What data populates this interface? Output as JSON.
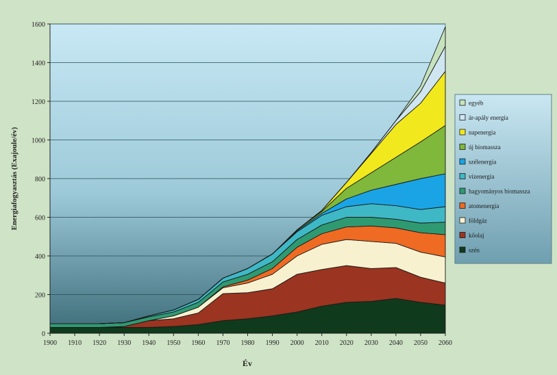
{
  "chart_data": {
    "type": "area",
    "stacked": true,
    "title": "",
    "xlabel": "Év",
    "ylabel": "Energiafogyasztás (Exajoule/év)",
    "x": [
      1900,
      1910,
      1920,
      1930,
      1940,
      1950,
      1960,
      1970,
      1980,
      1990,
      2000,
      2010,
      2020,
      2030,
      2040,
      2050,
      2060
    ],
    "xlim": [
      1900,
      2060
    ],
    "ylim": [
      0,
      1600
    ],
    "yticks": [
      0,
      200,
      400,
      600,
      800,
      1000,
      1200,
      1400,
      1600
    ],
    "xticks": [
      1900,
      1910,
      1920,
      1930,
      1940,
      1950,
      1960,
      1970,
      1980,
      1990,
      2000,
      2010,
      2020,
      2030,
      2040,
      2050,
      2060
    ],
    "grid": "horizontal",
    "legend_position": "right",
    "series": [
      {
        "name": "szén",
        "color": "#0f3a1c",
        "values": [
          30,
          30,
          30,
          30,
          30,
          35,
          45,
          65,
          75,
          90,
          110,
          140,
          160,
          165,
          180,
          160,
          145
        ]
      },
      {
        "name": "kőolaj",
        "color": "#9b3420",
        "values": [
          0,
          0,
          0,
          5,
          35,
          40,
          60,
          140,
          135,
          140,
          195,
          190,
          190,
          170,
          160,
          130,
          115
        ]
      },
      {
        "name": "földgáz",
        "color": "#f7f1cf",
        "values": [
          0,
          0,
          0,
          0,
          0,
          15,
          30,
          30,
          50,
          75,
          95,
          130,
          135,
          140,
          125,
          130,
          135
        ]
      },
      {
        "name": "atomenergia",
        "color": "#ef6a22",
        "values": [
          0,
          0,
          0,
          0,
          0,
          0,
          0,
          5,
          15,
          30,
          45,
          55,
          65,
          80,
          80,
          100,
          115
        ]
      },
      {
        "name": "hagyományos biomassza",
        "color": "#2f9a72",
        "values": [
          20,
          20,
          20,
          20,
          20,
          20,
          25,
          25,
          30,
          35,
          40,
          45,
          50,
          45,
          45,
          50,
          65
        ]
      },
      {
        "name": "vízenergia",
        "color": "#3fb8c6",
        "values": [
          0,
          0,
          0,
          0,
          5,
          10,
          15,
          20,
          30,
          40,
          40,
          50,
          55,
          70,
          70,
          70,
          80
        ]
      },
      {
        "name": "szélenergia",
        "color": "#1aa4e6",
        "values": [
          0,
          0,
          0,
          0,
          0,
          0,
          0,
          0,
          0,
          0,
          5,
          10,
          40,
          70,
          110,
          160,
          170
        ]
      },
      {
        "name": "új biomassza",
        "color": "#7fb83a",
        "values": [
          0,
          0,
          0,
          0,
          0,
          0,
          0,
          0,
          0,
          0,
          5,
          10,
          55,
          90,
          140,
          190,
          250
        ]
      },
      {
        "name": "napenergia",
        "color": "#f2e81e",
        "values": [
          0,
          0,
          0,
          0,
          0,
          0,
          0,
          0,
          0,
          0,
          0,
          5,
          30,
          100,
          170,
          200,
          280
        ]
      },
      {
        "name": "ár-apály energia",
        "color": "#cfe6f1",
        "values": [
          0,
          0,
          0,
          0,
          0,
          0,
          0,
          0,
          0,
          0,
          0,
          0,
          0,
          5,
          20,
          60,
          130
        ]
      },
      {
        "name": "egyéb",
        "color": "#c6e3bd",
        "values": [
          0,
          0,
          0,
          0,
          0,
          0,
          0,
          0,
          0,
          0,
          0,
          0,
          0,
          0,
          0,
          30,
          100
        ]
      }
    ]
  }
}
